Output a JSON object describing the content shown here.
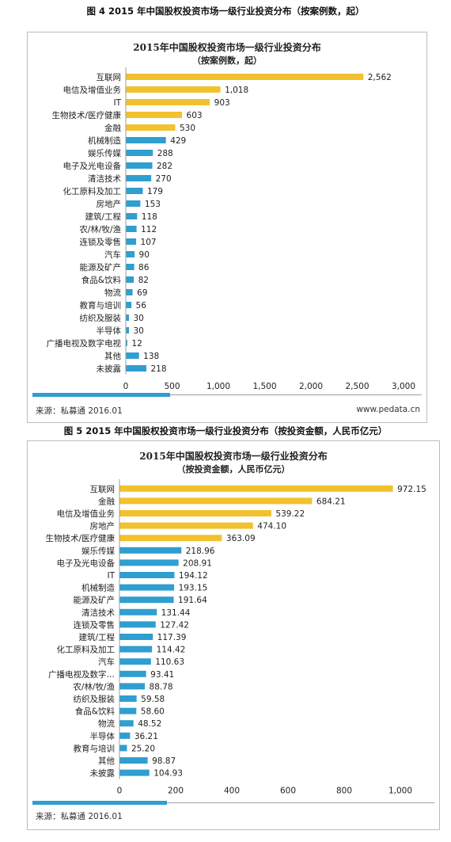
{
  "figure4": {
    "caption": "图 4 2015 年中国股权投资市场一级行业投资分布（按案例数，起）",
    "source": "来源：私募通 2016.01",
    "site": "www.pedata.cn"
  },
  "figure5": {
    "caption": "图 5 2015 年中国股权投资市场一级行业投资分布（按投资金额，人民币亿元）",
    "source": "来源：私募通 2016.01"
  },
  "colors": {
    "highlight": "#f2c12e",
    "bar": "#2f9ed0",
    "accent_rule": "#2f9ed0"
  },
  "chart_data": [
    {
      "type": "bar",
      "orientation": "horizontal",
      "title": "2015年中国股权投资市场一级行业投资分布",
      "subtitle": "（按案例数，起）",
      "categories": [
        "互联网",
        "电信及增值业务",
        "IT",
        "生物技术/医疗健康",
        "金融",
        "机械制造",
        "娱乐传媒",
        "电子及光电设备",
        "清洁技术",
        "化工原料及加工",
        "房地产",
        "建筑/工程",
        "农/林/牧/渔",
        "连锁及零售",
        "汽车",
        "能源及矿产",
        "食品&饮料",
        "物流",
        "教育与培训",
        "纺织及服装",
        "半导体",
        "广播电视及数字电视",
        "其他",
        "未披露"
      ],
      "values": [
        2562,
        1018,
        903,
        603,
        530,
        429,
        288,
        282,
        270,
        179,
        153,
        118,
        112,
        107,
        90,
        86,
        82,
        69,
        56,
        30,
        30,
        12,
        138,
        218
      ],
      "value_labels": [
        "2,562",
        "1,018",
        "903",
        "603",
        "530",
        "429",
        "288",
        "282",
        "270",
        "179",
        "153",
        "118",
        "112",
        "107",
        "90",
        "86",
        "82",
        "69",
        "56",
        "30",
        "30",
        "12",
        "138",
        "218"
      ],
      "highlight_count": 5,
      "xlim": [
        0,
        3000
      ],
      "xticks": [
        0,
        500,
        1000,
        1500,
        2000,
        2500,
        3000
      ],
      "xtick_labels": [
        "0",
        "500",
        "1,000",
        "1,500",
        "2,000",
        "2,500",
        "3,000"
      ],
      "grid": false,
      "legend": "none"
    },
    {
      "type": "bar",
      "orientation": "horizontal",
      "title": "2015年中国股权投资市场一级行业投资分布",
      "subtitle": "（按投资金额，人民币亿元）",
      "categories": [
        "互联网",
        "金融",
        "电信及增值业务",
        "房地产",
        "生物技术/医疗健康",
        "娱乐传媒",
        "电子及光电设备",
        "IT",
        "机械制造",
        "能源及矿产",
        "清洁技术",
        "连锁及零售",
        "建筑/工程",
        "化工原料及加工",
        "汽车",
        "广播电视及数字…",
        "农/林/牧/渔",
        "纺织及服装",
        "食品&饮料",
        "物流",
        "半导体",
        "教育与培训",
        "其他",
        "未披露"
      ],
      "values": [
        972.15,
        684.21,
        539.22,
        474.1,
        363.09,
        218.96,
        208.91,
        194.12,
        193.15,
        191.64,
        131.44,
        127.42,
        117.39,
        114.42,
        110.63,
        93.41,
        88.78,
        59.58,
        58.6,
        48.52,
        36.21,
        25.2,
        98.87,
        104.93
      ],
      "value_labels": [
        "972.15",
        "684.21",
        "539.22",
        "474.10",
        "363.09",
        "218.96",
        "208.91",
        "194.12",
        "193.15",
        "191.64",
        "131.44",
        "127.42",
        "117.39",
        "114.42",
        "110.63",
        "93.41",
        "88.78",
        "59.58",
        "58.60",
        "48.52",
        "36.21",
        "25.20",
        "98.87",
        "104.93"
      ],
      "highlight_count": 5,
      "xlim": [
        0,
        1000
      ],
      "xticks": [
        0,
        200,
        400,
        600,
        800,
        1000
      ],
      "xtick_labels": [
        "0",
        "200",
        "400",
        "600",
        "800",
        "1,000"
      ],
      "grid": false,
      "legend": "none"
    }
  ]
}
